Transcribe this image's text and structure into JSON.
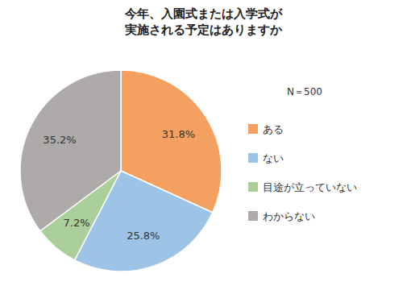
{
  "chart_data": {
    "type": "pie",
    "title": "今年、入園式または入学式が\n実施される予定はありますか",
    "categories": [
      "ある",
      "ない",
      "目途が立っていない",
      "わからない"
    ],
    "values": [
      31.8,
      25.8,
      7.2,
      35.2
    ],
    "value_labels": [
      "31.8%",
      "25.8%",
      "7.2%",
      "35.2%"
    ],
    "colors": [
      "#F4A060",
      "#9DC3E6",
      "#AACF9A",
      "#AEAAAA"
    ],
    "data_labels": true,
    "legend": "right",
    "annotations": [
      "N＝500"
    ]
  }
}
